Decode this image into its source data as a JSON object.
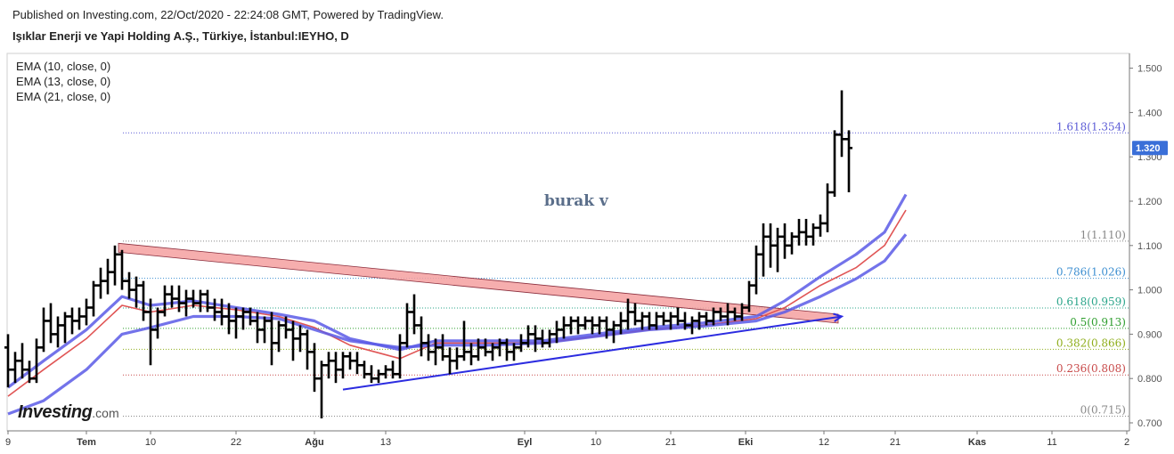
{
  "header": {
    "published": "Published on Investing.com, 22/Oct/2020 - 22:24:08 GMT, Powered by TradingView.",
    "symbol": "Işıklar Enerji ve Yapi Holding A.Ş., Türkiye, İstanbul:IEYHO, D"
  },
  "indicators": [
    "EMA (10, close, 0)",
    "EMA (13, close, 0)",
    "EMA (21, close, 0)"
  ],
  "watermark": "burak v",
  "logo": {
    "main": "Investing",
    "tld": ".com"
  },
  "chart_data": {
    "type": "line",
    "subtype": "ohlc-bars",
    "ylim": [
      0.68,
      1.52
    ],
    "y_ticks": [
      "0.700",
      "0.800",
      "0.900",
      "1.000",
      "1.100",
      "1.200",
      "1.300",
      "1.400",
      "1.500"
    ],
    "x_ticks": [
      {
        "label": "9",
        "day": 0
      },
      {
        "label": "Tem",
        "day": 22
      },
      {
        "label": "10",
        "day": 40
      },
      {
        "label": "22",
        "day": 64
      },
      {
        "label": "Ağu",
        "day": 86
      },
      {
        "label": "13",
        "day": 106
      },
      {
        "label": "Eyl",
        "day": 145
      },
      {
        "label": "10",
        "day": 165
      },
      {
        "label": "21",
        "day": 186
      },
      {
        "label": "Eki",
        "day": 207
      },
      {
        "label": "12",
        "day": 229
      },
      {
        "label": "21",
        "day": 249
      },
      {
        "label": "Kas",
        "day": 272
      },
      {
        "label": "11",
        "day": 293
      },
      {
        "label": "2",
        "day": 314
      }
    ],
    "last_price": "1.320",
    "fibonacci": [
      {
        "label": "1.618(1.354)",
        "value": 1.354,
        "color": "#5b5bd6"
      },
      {
        "label": "1(1.110)",
        "value": 1.11,
        "color": "#888888"
      },
      {
        "label": "0.786(1.026)",
        "value": 1.026,
        "color": "#3d8fd1"
      },
      {
        "label": "0.618(0.959)",
        "value": 0.959,
        "color": "#2aa58a"
      },
      {
        "label": "0.5(0.913)",
        "value": 0.913,
        "color": "#2e9e2e"
      },
      {
        "label": "0.382(0.866)",
        "value": 0.866,
        "color": "#8fae1b"
      },
      {
        "label": "0.236(0.808)",
        "value": 0.808,
        "color": "#c84a4a"
      },
      {
        "label": "0(0.715)",
        "value": 0.715,
        "color": "#888888"
      }
    ],
    "series": [
      {
        "name": "EMA (10, close, 0)",
        "color": "#e05555",
        "points": [
          [
            0,
            0.76
          ],
          [
            10,
            0.82
          ],
          [
            22,
            0.89
          ],
          [
            32,
            0.965
          ],
          [
            40,
            0.95
          ],
          [
            52,
            0.965
          ],
          [
            64,
            0.955
          ],
          [
            76,
            0.94
          ],
          [
            86,
            0.915
          ],
          [
            96,
            0.875
          ],
          [
            110,
            0.845
          ],
          [
            120,
            0.88
          ],
          [
            135,
            0.88
          ],
          [
            150,
            0.88
          ],
          [
            165,
            0.895
          ],
          [
            180,
            0.91
          ],
          [
            195,
            0.92
          ],
          [
            210,
            0.935
          ],
          [
            218,
            0.96
          ],
          [
            228,
            1.01
          ],
          [
            238,
            1.05
          ],
          [
            246,
            1.1
          ],
          [
            252,
            1.18
          ]
        ]
      },
      {
        "name": "EMA (13, close, 0)",
        "color": "#5a5ae6",
        "points": [
          [
            0,
            0.78
          ],
          [
            10,
            0.84
          ],
          [
            22,
            0.91
          ],
          [
            32,
            0.985
          ],
          [
            40,
            0.965
          ],
          [
            52,
            0.975
          ],
          [
            64,
            0.96
          ],
          [
            76,
            0.945
          ],
          [
            86,
            0.93
          ],
          [
            96,
            0.89
          ],
          [
            110,
            0.865
          ],
          [
            120,
            0.885
          ],
          [
            135,
            0.885
          ],
          [
            150,
            0.885
          ],
          [
            165,
            0.9
          ],
          [
            180,
            0.915
          ],
          [
            195,
            0.925
          ],
          [
            210,
            0.94
          ],
          [
            218,
            0.975
          ],
          [
            228,
            1.03
          ],
          [
            238,
            1.08
          ],
          [
            246,
            1.13
          ],
          [
            252,
            1.215
          ]
        ]
      },
      {
        "name": "EMA (21, close, 0)",
        "color": "#5a5ae6",
        "points": [
          [
            0,
            0.72
          ],
          [
            10,
            0.75
          ],
          [
            22,
            0.82
          ],
          [
            32,
            0.9
          ],
          [
            40,
            0.915
          ],
          [
            52,
            0.94
          ],
          [
            64,
            0.94
          ],
          [
            76,
            0.935
          ],
          [
            86,
            0.91
          ],
          [
            96,
            0.885
          ],
          [
            110,
            0.87
          ],
          [
            120,
            0.875
          ],
          [
            135,
            0.875
          ],
          [
            150,
            0.88
          ],
          [
            165,
            0.895
          ],
          [
            180,
            0.91
          ],
          [
            195,
            0.918
          ],
          [
            210,
            0.93
          ],
          [
            218,
            0.95
          ],
          [
            228,
            0.985
          ],
          [
            238,
            1.025
          ],
          [
            246,
            1.065
          ],
          [
            252,
            1.125
          ]
        ]
      }
    ],
    "trendlines": [
      {
        "name": "descending channel",
        "from": [
          31,
          1.105
        ],
        "to": [
          233,
          0.945
        ],
        "color": "#f4a0a0"
      },
      {
        "name": "ascending support",
        "from": [
          94,
          0.775
        ],
        "to": [
          234,
          0.94
        ],
        "color": "#2c2ce0"
      }
    ],
    "ohlc": [
      [
        0,
        0.87,
        0.9,
        0.78,
        0.82
      ],
      [
        2,
        0.82,
        0.86,
        0.79,
        0.84
      ],
      [
        4,
        0.84,
        0.88,
        0.8,
        0.82
      ],
      [
        6,
        0.82,
        0.84,
        0.79,
        0.8
      ],
      [
        8,
        0.8,
        0.89,
        0.79,
        0.87
      ],
      [
        10,
        0.87,
        0.96,
        0.86,
        0.93
      ],
      [
        12,
        0.93,
        0.97,
        0.88,
        0.9
      ],
      [
        14,
        0.9,
        0.94,
        0.87,
        0.92
      ],
      [
        16,
        0.92,
        0.95,
        0.88,
        0.94
      ],
      [
        18,
        0.94,
        0.96,
        0.9,
        0.93
      ],
      [
        20,
        0.93,
        0.96,
        0.91,
        0.94
      ],
      [
        22,
        0.94,
        0.98,
        0.92,
        0.96
      ],
      [
        24,
        0.96,
        1.02,
        0.94,
        1.01
      ],
      [
        26,
        1.01,
        1.05,
        0.98,
        1.02
      ],
      [
        28,
        1.02,
        1.07,
        0.99,
        1.04
      ],
      [
        30,
        1.04,
        1.1,
        1.01,
        1.08
      ],
      [
        32,
        1.08,
        1.09,
        1.0,
        1.02
      ],
      [
        34,
        1.02,
        1.04,
        0.98,
        1.0
      ],
      [
        36,
        1.0,
        1.03,
        0.96,
        1.01
      ],
      [
        38,
        1.01,
        1.02,
        0.93,
        0.95
      ],
      [
        40,
        0.95,
        0.98,
        0.83,
        0.91
      ],
      [
        42,
        0.91,
        0.96,
        0.89,
        0.95
      ],
      [
        44,
        0.95,
        1.01,
        0.94,
        0.99
      ],
      [
        46,
        0.99,
        1.01,
        0.96,
        0.98
      ],
      [
        48,
        0.98,
        1.01,
        0.95,
        0.97
      ],
      [
        50,
        0.97,
        1.0,
        0.94,
        0.98
      ],
      [
        52,
        0.98,
        1.0,
        0.96,
        0.97
      ],
      [
        54,
        0.97,
        1.0,
        0.95,
        0.99
      ],
      [
        56,
        0.99,
        1.0,
        0.95,
        0.96
      ],
      [
        58,
        0.96,
        0.98,
        0.93,
        0.95
      ],
      [
        60,
        0.95,
        0.98,
        0.92,
        0.94
      ],
      [
        62,
        0.94,
        0.97,
        0.9,
        0.93
      ],
      [
        64,
        0.93,
        0.96,
        0.89,
        0.94
      ],
      [
        66,
        0.94,
        0.96,
        0.91,
        0.95
      ],
      [
        68,
        0.95,
        0.96,
        0.92,
        0.93
      ],
      [
        70,
        0.93,
        0.95,
        0.88,
        0.91
      ],
      [
        72,
        0.91,
        0.94,
        0.88,
        0.93
      ],
      [
        74,
        0.93,
        0.95,
        0.83,
        0.88
      ],
      [
        76,
        0.88,
        0.93,
        0.86,
        0.92
      ],
      [
        78,
        0.92,
        0.94,
        0.89,
        0.91
      ],
      [
        80,
        0.91,
        0.93,
        0.84,
        0.89
      ],
      [
        82,
        0.89,
        0.92,
        0.86,
        0.9
      ],
      [
        84,
        0.9,
        0.91,
        0.82,
        0.86
      ],
      [
        86,
        0.86,
        0.88,
        0.77,
        0.8
      ],
      [
        88,
        0.8,
        0.84,
        0.71,
        0.83
      ],
      [
        90,
        0.83,
        0.86,
        0.8,
        0.84
      ],
      [
        92,
        0.84,
        0.86,
        0.79,
        0.82
      ],
      [
        94,
        0.82,
        0.86,
        0.8,
        0.85
      ],
      [
        96,
        0.85,
        0.86,
        0.82,
        0.84
      ],
      [
        98,
        0.84,
        0.86,
        0.81,
        0.83
      ],
      [
        100,
        0.83,
        0.84,
        0.8,
        0.81
      ],
      [
        102,
        0.81,
        0.83,
        0.79,
        0.8
      ],
      [
        104,
        0.8,
        0.82,
        0.79,
        0.81
      ],
      [
        106,
        0.81,
        0.83,
        0.8,
        0.82
      ],
      [
        108,
        0.82,
        0.84,
        0.8,
        0.81
      ],
      [
        110,
        0.81,
        0.9,
        0.8,
        0.88
      ],
      [
        112,
        0.88,
        0.97,
        0.87,
        0.95
      ],
      [
        114,
        0.95,
        0.99,
        0.9,
        0.92
      ],
      [
        116,
        0.92,
        0.94,
        0.85,
        0.88
      ],
      [
        118,
        0.88,
        0.9,
        0.84,
        0.86
      ],
      [
        120,
        0.86,
        0.89,
        0.83,
        0.87
      ],
      [
        122,
        0.87,
        0.9,
        0.84,
        0.85
      ],
      [
        124,
        0.85,
        0.87,
        0.81,
        0.84
      ],
      [
        126,
        0.84,
        0.87,
        0.82,
        0.85
      ],
      [
        128,
        0.85,
        0.93,
        0.84,
        0.86
      ],
      [
        130,
        0.86,
        0.88,
        0.83,
        0.85
      ],
      [
        132,
        0.85,
        0.89,
        0.84,
        0.87
      ],
      [
        134,
        0.87,
        0.89,
        0.85,
        0.86
      ],
      [
        136,
        0.86,
        0.88,
        0.84,
        0.87
      ],
      [
        138,
        0.87,
        0.89,
        0.85,
        0.88
      ],
      [
        140,
        0.88,
        0.89,
        0.84,
        0.86
      ],
      [
        142,
        0.86,
        0.88,
        0.84,
        0.87
      ],
      [
        144,
        0.87,
        0.9,
        0.86,
        0.88
      ],
      [
        146,
        0.88,
        0.92,
        0.87,
        0.9
      ],
      [
        148,
        0.9,
        0.92,
        0.86,
        0.89
      ],
      [
        150,
        0.89,
        0.91,
        0.87,
        0.88
      ],
      [
        152,
        0.88,
        0.91,
        0.87,
        0.9
      ],
      [
        154,
        0.9,
        0.93,
        0.88,
        0.91
      ],
      [
        156,
        0.91,
        0.94,
        0.89,
        0.92
      ],
      [
        158,
        0.92,
        0.94,
        0.9,
        0.93
      ],
      [
        160,
        0.93,
        0.94,
        0.9,
        0.92
      ],
      [
        162,
        0.92,
        0.94,
        0.91,
        0.93
      ],
      [
        164,
        0.93,
        0.94,
        0.9,
        0.92
      ],
      [
        166,
        0.92,
        0.94,
        0.9,
        0.93
      ],
      [
        168,
        0.93,
        0.94,
        0.89,
        0.91
      ],
      [
        170,
        0.91,
        0.93,
        0.88,
        0.92
      ],
      [
        172,
        0.92,
        0.95,
        0.9,
        0.93
      ],
      [
        174,
        0.93,
        0.98,
        0.91,
        0.95
      ],
      [
        176,
        0.95,
        0.97,
        0.92,
        0.93
      ],
      [
        178,
        0.93,
        0.95,
        0.91,
        0.94
      ],
      [
        180,
        0.94,
        0.95,
        0.91,
        0.92
      ],
      [
        182,
        0.92,
        0.95,
        0.91,
        0.94
      ],
      [
        184,
        0.94,
        0.95,
        0.92,
        0.93
      ],
      [
        186,
        0.93,
        0.95,
        0.91,
        0.94
      ],
      [
        188,
        0.94,
        0.96,
        0.92,
        0.93
      ],
      [
        190,
        0.93,
        0.95,
        0.91,
        0.92
      ],
      [
        192,
        0.92,
        0.94,
        0.9,
        0.93
      ],
      [
        194,
        0.93,
        0.95,
        0.91,
        0.94
      ],
      [
        196,
        0.94,
        0.95,
        0.92,
        0.93
      ],
      [
        198,
        0.93,
        0.96,
        0.92,
        0.95
      ],
      [
        200,
        0.95,
        0.96,
        0.93,
        0.94
      ],
      [
        202,
        0.94,
        0.97,
        0.92,
        0.95
      ],
      [
        204,
        0.95,
        0.96,
        0.93,
        0.94
      ],
      [
        206,
        0.94,
        0.97,
        0.93,
        0.96
      ],
      [
        208,
        0.96,
        1.02,
        0.95,
        1.01
      ],
      [
        210,
        1.01,
        1.1,
        0.99,
        1.08
      ],
      [
        212,
        1.08,
        1.15,
        1.03,
        1.12
      ],
      [
        214,
        1.12,
        1.15,
        1.05,
        1.1
      ],
      [
        216,
        1.1,
        1.14,
        1.04,
        1.12
      ],
      [
        218,
        1.12,
        1.15,
        1.07,
        1.1
      ],
      [
        220,
        1.1,
        1.13,
        1.08,
        1.12
      ],
      [
        222,
        1.12,
        1.16,
        1.1,
        1.13
      ],
      [
        224,
        1.13,
        1.16,
        1.1,
        1.12
      ],
      [
        226,
        1.12,
        1.15,
        1.1,
        1.14
      ],
      [
        228,
        1.14,
        1.17,
        1.12,
        1.15
      ],
      [
        230,
        1.15,
        1.24,
        1.13,
        1.22
      ],
      [
        232,
        1.22,
        1.36,
        1.21,
        1.35
      ],
      [
        234,
        1.35,
        1.45,
        1.3,
        1.34
      ],
      [
        236,
        1.34,
        1.36,
        1.22,
        1.32
      ]
    ]
  }
}
